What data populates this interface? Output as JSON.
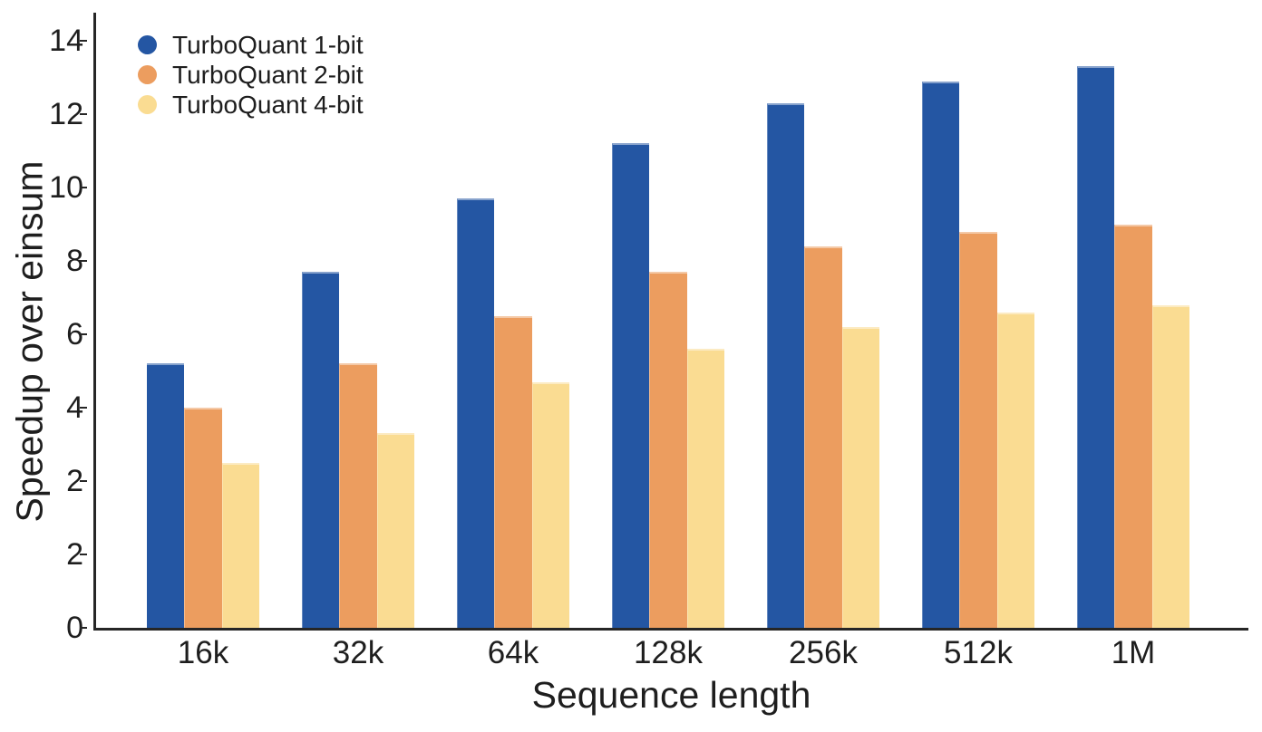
{
  "chart_data": {
    "type": "bar",
    "title": "",
    "categories": [
      "16k",
      "32k",
      "64k",
      "128k",
      "256k",
      "512k",
      "1M"
    ],
    "series": [
      {
        "name": "TurboQuant 1-bit",
        "color": "#2456a3",
        "values": [
          5.2,
          7.7,
          9.7,
          11.2,
          12.3,
          12.9,
          13.3
        ]
      },
      {
        "name": "TurboQuant 2-bit",
        "color": "#ec9d5f",
        "values": [
          4.0,
          5.2,
          6.5,
          7.7,
          8.4,
          8.8,
          9.0
        ]
      },
      {
        "name": "TurboQuant 4-bit",
        "color": "#fadc92",
        "values": [
          2.5,
          3.3,
          4.7,
          5.6,
          6.2,
          6.6,
          6.8
        ]
      }
    ],
    "xlabel": "Sequence length",
    "ylabel": "Speedup over einsum",
    "ylim": [
      0,
      14
    ],
    "y_tick_labels_bottom_to_top": [
      "0",
      "2",
      "2",
      "4",
      "6",
      "8",
      "10",
      "12",
      "14"
    ],
    "y_tick_values_for_scale": [
      0,
      2,
      2,
      4,
      6,
      8,
      10,
      12,
      14
    ],
    "grid": "off",
    "legend_position": "top-left",
    "legend_entries": [
      "TurboQuant 1-bit",
      "TurboQuant 2-bit",
      "TurboQuant 4-bit"
    ]
  },
  "colors": {
    "series_1bit": "#2456a3",
    "series_2bit": "#ec9d5f",
    "series_4bit": "#fadc92",
    "axis": "#262626",
    "text": "#1e1e1e",
    "background": "#ffffff"
  }
}
